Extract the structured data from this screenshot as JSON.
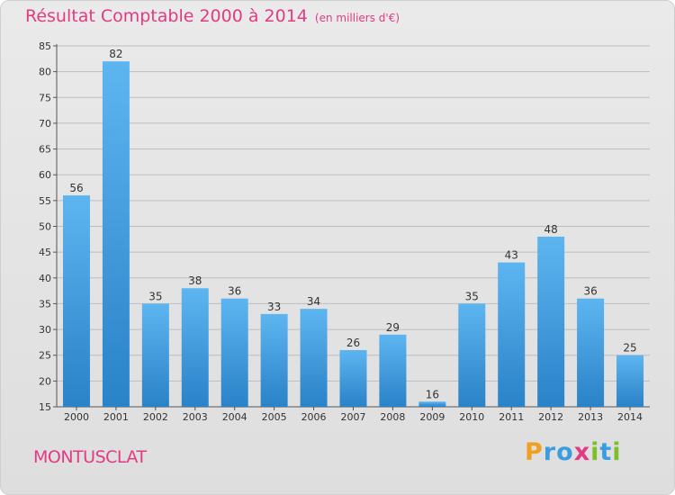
{
  "title": "Résultat Comptable 2000 à 2014",
  "title_unit": "(en milliers d'€)",
  "commune": "MONTUSCLAT",
  "logo_text": "Proxiti",
  "colors": {
    "title": "#e23b83",
    "bar_light": "#5db5f0",
    "bar_dark": "#2a82c8",
    "grid": "#bdbdbd"
  },
  "chart_data": {
    "type": "bar",
    "categories": [
      "2000",
      "2001",
      "2002",
      "2003",
      "2004",
      "2005",
      "2006",
      "2007",
      "2008",
      "2009",
      "2010",
      "2011",
      "2012",
      "2013",
      "2014"
    ],
    "values": [
      56,
      82,
      35,
      38,
      36,
      33,
      34,
      26,
      29,
      16,
      35,
      43,
      48,
      36,
      25
    ],
    "ylim": [
      15,
      85
    ],
    "yticks": [
      15,
      20,
      25,
      30,
      35,
      40,
      45,
      50,
      55,
      60,
      65,
      70,
      75,
      80,
      85
    ],
    "grid": true,
    "xlabel": "",
    "ylabel": ""
  }
}
